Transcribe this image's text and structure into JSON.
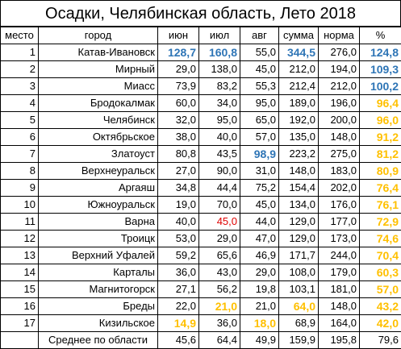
{
  "title": "Осадки, Челябинская область, Лето 2018",
  "headers": [
    "место",
    "город",
    "июн",
    "июл",
    "авг",
    "сумма",
    "норма",
    "%"
  ],
  "rows": [
    {
      "rank": "1",
      "city": "Катав-Ивановск",
      "jun": "128,7",
      "jul": "160,8",
      "aug": "55,0",
      "sum": "344,5",
      "norm": "276,0",
      "pct": "124,8"
    },
    {
      "rank": "2",
      "city": "Мирный",
      "jun": "29,0",
      "jul": "138,0",
      "aug": "45,0",
      "sum": "212,0",
      "norm": "194,0",
      "pct": "109,3"
    },
    {
      "rank": "3",
      "city": "Миасс",
      "jun": "73,9",
      "jul": "83,2",
      "aug": "55,3",
      "sum": "212,4",
      "norm": "212,0",
      "pct": "100,2"
    },
    {
      "rank": "4",
      "city": "Бродокалмак",
      "jun": "60,0",
      "jul": "34,0",
      "aug": "95,0",
      "sum": "189,0",
      "norm": "196,0",
      "pct": "96,4"
    },
    {
      "rank": "5",
      "city": "Челябинск",
      "jun": "32,0",
      "jul": "95,0",
      "aug": "65,0",
      "sum": "192,0",
      "norm": "200,0",
      "pct": "96,0"
    },
    {
      "rank": "6",
      "city": "Октябрьское",
      "jun": "38,0",
      "jul": "40,0",
      "aug": "57,0",
      "sum": "135,0",
      "norm": "148,0",
      "pct": "91,2"
    },
    {
      "rank": "7",
      "city": "Златоуст",
      "jun": "80,8",
      "jul": "43,5",
      "aug": "98,9",
      "sum": "223,2",
      "norm": "275,0",
      "pct": "81,2"
    },
    {
      "rank": "8",
      "city": "Верхнеуральск",
      "jun": "27,0",
      "jul": "90,0",
      "aug": "31,0",
      "sum": "148,0",
      "norm": "183,0",
      "pct": "80,9"
    },
    {
      "rank": "9",
      "city": "Аргаяш",
      "jun": "34,8",
      "jul": "44,4",
      "aug": "75,2",
      "sum": "154,4",
      "norm": "202,0",
      "pct": "76,4"
    },
    {
      "rank": "10",
      "city": "Южноуральск",
      "jun": "19,0",
      "jul": "70,0",
      "aug": "45,0",
      "sum": "134,0",
      "norm": "176,0",
      "pct": "76,1"
    },
    {
      "rank": "11",
      "city": "Варна",
      "jun": "40,0",
      "jul": "45,0",
      "aug": "44,0",
      "sum": "129,0",
      "norm": "177,0",
      "pct": "72,9"
    },
    {
      "rank": "12",
      "city": "Троицк",
      "jun": "53,0",
      "jul": "29,0",
      "aug": "47,0",
      "sum": "129,0",
      "norm": "173,0",
      "pct": "74,6"
    },
    {
      "rank": "13",
      "city": "Верхний Уфалей",
      "jun": "59,2",
      "jul": "65,6",
      "aug": "46,9",
      "sum": "171,7",
      "norm": "244,0",
      "pct": "70,4"
    },
    {
      "rank": "14",
      "city": "Карталы",
      "jun": "36,0",
      "jul": "43,0",
      "aug": "29,0",
      "sum": "108,0",
      "norm": "179,0",
      "pct": "60,3"
    },
    {
      "rank": "15",
      "city": "Магнитогорск",
      "jun": "27,1",
      "jul": "56,2",
      "aug": "19,8",
      "sum": "103,1",
      "norm": "181,0",
      "pct": "57,0"
    },
    {
      "rank": "16",
      "city": "Бреды",
      "jun": "22,0",
      "jul": "21,0",
      "aug": "21,0",
      "sum": "64,0",
      "norm": "148,0",
      "pct": "43,2"
    },
    {
      "rank": "17",
      "city": "Кизильское",
      "jun": "14,9",
      "jul": "36,0",
      "aug": "18,0",
      "sum": "68,9",
      "norm": "164,0",
      "pct": "42,0"
    }
  ],
  "footer": {
    "label": "Среднее по области",
    "jun": "45,6",
    "jul": "64,4",
    "aug": "49,9",
    "sum": "159,9",
    "norm": "195,8",
    "pct": "79,6"
  },
  "colors": {
    "blue": "#2e75b6",
    "orange": "#ffc000",
    "red": "#e00000"
  },
  "highlights": {
    "0": {
      "jun": "blue",
      "jul": "blue",
      "sum": "blue",
      "pct": "blue"
    },
    "1": {
      "pct": "blue"
    },
    "2": {
      "pct": "blue"
    },
    "3": {
      "pct": "orange"
    },
    "4": {
      "pct": "orange"
    },
    "5": {
      "pct": "orange"
    },
    "6": {
      "aug": "blue",
      "pct": "orange"
    },
    "7": {
      "pct": "orange"
    },
    "8": {
      "pct": "orange"
    },
    "9": {
      "pct": "orange"
    },
    "10": {
      "jul": "red",
      "pct": "orange"
    },
    "11": {
      "pct": "orange"
    },
    "12": {
      "pct": "orange"
    },
    "13": {
      "pct": "orange"
    },
    "14": {
      "pct": "orange"
    },
    "15": {
      "jul": "orange",
      "sum": "orange",
      "pct": "orange"
    },
    "16": {
      "jun": "orange",
      "aug": "orange",
      "pct": "orange"
    }
  }
}
